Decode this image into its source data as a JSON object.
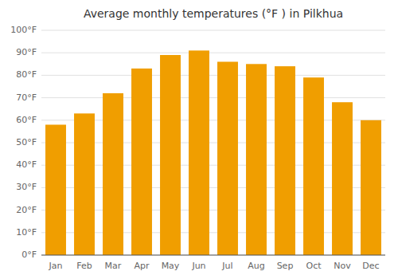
{
  "chart_data": {
    "type": "bar",
    "title": "Average monthly temperatures (°F ) in Pilkhua",
    "categories": [
      "Jan",
      "Feb",
      "Mar",
      "Apr",
      "May",
      "Jun",
      "Jul",
      "Aug",
      "Sep",
      "Oct",
      "Nov",
      "Dec"
    ],
    "values": [
      58,
      63,
      72,
      83,
      89,
      91,
      86,
      85,
      84,
      79,
      68,
      60
    ],
    "color": "#F09E00",
    "ylim": [
      0,
      100
    ],
    "yticks": [
      {
        "value": 0,
        "label": "0°F"
      },
      {
        "value": 10,
        "label": "10°F"
      },
      {
        "value": 20,
        "label": "20°F"
      },
      {
        "value": 30,
        "label": "30°F"
      },
      {
        "value": 40,
        "label": "40°F"
      },
      {
        "value": 50,
        "label": "50°F"
      },
      {
        "value": 60,
        "label": "60°F"
      },
      {
        "value": 70,
        "label": "70°F"
      },
      {
        "value": 80,
        "label": "80°F"
      },
      {
        "value": 90,
        "label": "90°F"
      },
      {
        "value": 100,
        "label": "100°F"
      }
    ],
    "grid": true
  }
}
